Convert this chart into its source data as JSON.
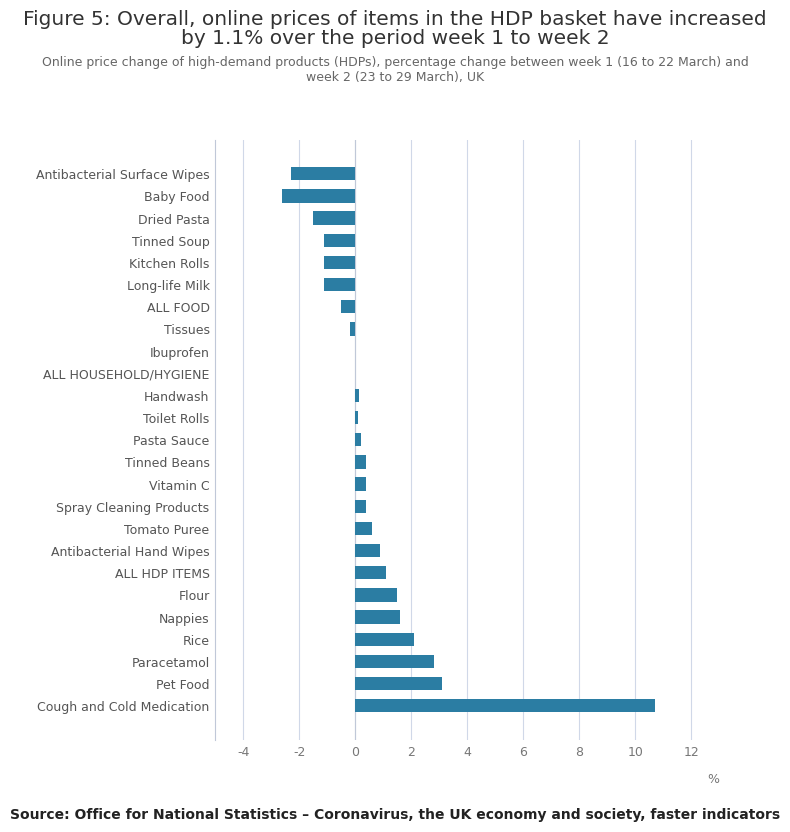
{
  "title_line1": "Figure 5: Overall, online prices of items in the HDP basket have increased",
  "title_line2": "by 1.1% over the period week 1 to week 2",
  "subtitle": "Online price change of high-demand products (HDPs), percentage change between week 1 (16 to 22 March) and\nweek 2 (23 to 29 March), UK",
  "source": "Source: Office for National Statistics – Coronavirus, the UK economy and society, faster indicators",
  "categories": [
    "Cough and Cold Medication",
    "Pet Food",
    "Paracetamol",
    "Rice",
    "Nappies",
    "Flour",
    "ALL HDP ITEMS",
    "Antibacterial Hand Wipes",
    "Tomato Puree",
    "Spray Cleaning Products",
    "Vitamin C",
    "Tinned Beans",
    "Pasta Sauce",
    "Toilet Rolls",
    "Handwash",
    "ALL HOUSEHOLD/HYGIENE",
    "Ibuprofen",
    "Tissues",
    "ALL FOOD",
    "Long-life Milk",
    "Kitchen Rolls",
    "Tinned Soup",
    "Dried Pasta",
    "Baby Food",
    "Antibacterial Surface Wipes"
  ],
  "values": [
    10.7,
    3.1,
    2.8,
    2.1,
    1.6,
    1.5,
    1.1,
    0.9,
    0.6,
    0.4,
    0.4,
    0.4,
    0.2,
    0.1,
    0.15,
    0.0,
    0.0,
    -0.2,
    -0.5,
    -1.1,
    -1.1,
    -1.1,
    -1.5,
    -2.6,
    -2.3
  ],
  "bar_color": "#2b7da3",
  "xlim": [
    -5,
    13
  ],
  "xticks": [
    -4,
    -2,
    0,
    2,
    4,
    6,
    8,
    10,
    12
  ],
  "xlabel": "%",
  "title_fontsize": 14.5,
  "subtitle_fontsize": 9,
  "source_fontsize": 10,
  "tick_fontsize": 9,
  "background_color": "#ffffff",
  "grid_color": "#d0d8e8",
  "spine_color": "#c0c8d8"
}
